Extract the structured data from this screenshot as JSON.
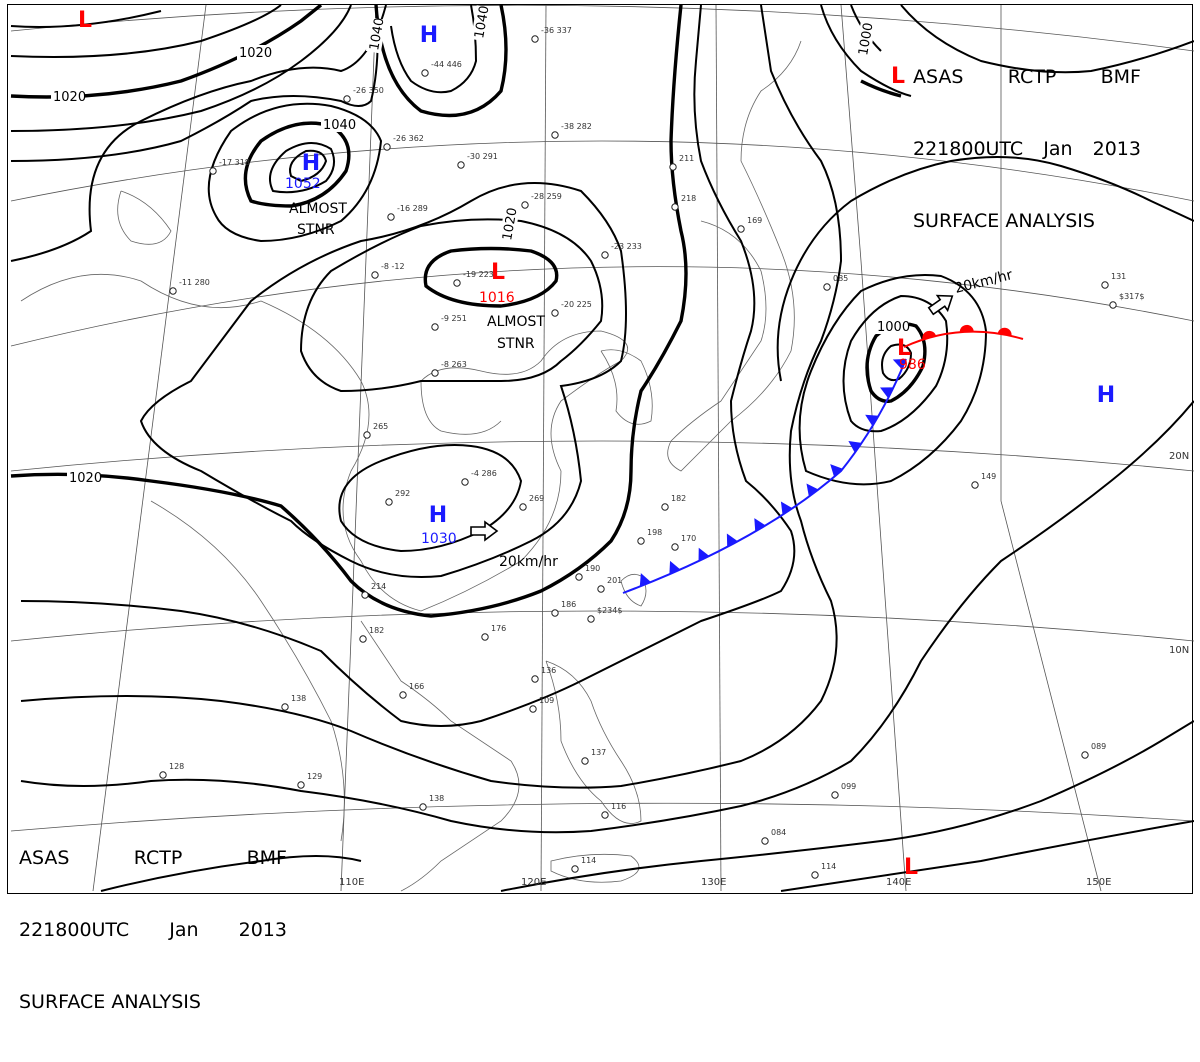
{
  "title": {
    "line1": [
      "ASAS",
      "RCTP",
      "BMF"
    ],
    "line2": [
      "221800UTC",
      "Jan",
      "2013"
    ],
    "line3": "SURFACE ANALYSIS"
  },
  "colors": {
    "high": "#1a1aff",
    "low": "#ff0000",
    "cold_front": "#1a1aff",
    "warm_front": "#ff0000",
    "isobar": "#000000"
  },
  "isobar_labels": [
    "1020",
    "1020",
    "1040",
    "1040",
    "1040",
    "1020",
    "1000",
    "1020",
    "1000"
  ],
  "pressure_centers": [
    {
      "type": "H",
      "value": "1052"
    },
    {
      "type": "H",
      "value": ""
    },
    {
      "type": "H",
      "value": "1030"
    },
    {
      "type": "H",
      "value": ""
    },
    {
      "type": "L",
      "value": "1016"
    },
    {
      "type": "L",
      "value": "986"
    },
    {
      "type": "L",
      "value": ""
    },
    {
      "type": "L",
      "value": ""
    },
    {
      "type": "L",
      "value": ""
    }
  ],
  "annotations": {
    "almost_stnr": [
      "ALMOST",
      "STNR"
    ],
    "motion_1": "20km/hr",
    "motion_2": "20km/hr"
  },
  "longitude_labels": [
    "110E",
    "120E",
    "130E",
    "140E",
    "150E"
  ],
  "latitude_labels": [
    "20N",
    "10N"
  ],
  "station_samples": [
    "-36 337",
    "-44 446",
    "-26 350",
    "-26 362",
    "-38 282",
    "-30 291",
    "-17 318",
    "-16 289",
    "-28 259",
    "-19 223",
    "-23 233",
    "-11 280",
    "-8 -12",
    "-9 251",
    "-20 225",
    "-8 263",
    "-4 286",
    "265",
    "292",
    "269",
    "214",
    "182",
    "176",
    "166",
    "138",
    "136",
    "109",
    "137",
    "129",
    "128",
    "138",
    "114",
    "116",
    "149",
    "131",
    "085",
    "169",
    "211",
    "218",
    "190",
    "201",
    "186",
    "198",
    "182",
    "170",
    "089",
    "099",
    "084",
    "114",
    "$234$",
    "$317$"
  ]
}
